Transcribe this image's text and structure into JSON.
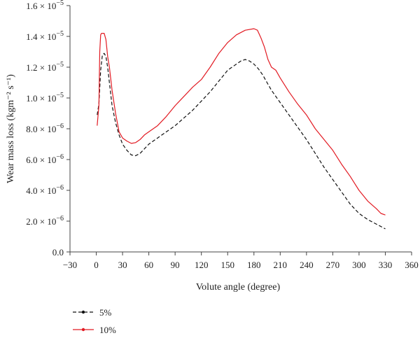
{
  "chart_data": {
    "type": "line",
    "title": "",
    "xlabel": "Volute angle (degree)",
    "ylabel": "Wear mass loss (kgm⁻² s⁻¹)",
    "xlim": [
      -30,
      360
    ],
    "ylim": [
      0,
      1.6e-05
    ],
    "grid": false,
    "legend_position": "bottom-left",
    "x_ticks": [
      -30,
      0,
      30,
      60,
      90,
      120,
      150,
      180,
      210,
      240,
      270,
      300,
      330,
      360
    ],
    "x_tick_labels": [
      "−30",
      "0",
      "30",
      "60",
      "90",
      "120",
      "150",
      "180",
      "210",
      "240",
      "270",
      "300",
      "330",
      "360"
    ],
    "y_ticks": [
      0,
      2e-06,
      4e-06,
      6e-06,
      8e-06,
      1e-05,
      1.2e-05,
      1.4e-05,
      1.6e-05
    ],
    "y_tick_labels": [
      {
        "mantissa": "0.0",
        "exp": ""
      },
      {
        "mantissa": "2.0",
        "exp": "−6"
      },
      {
        "mantissa": "4.0",
        "exp": "−6"
      },
      {
        "mantissa": "6.0",
        "exp": "−6"
      },
      {
        "mantissa": "8.0",
        "exp": "−6"
      },
      {
        "mantissa": "1.0",
        "exp": "−5"
      },
      {
        "mantissa": "1.2",
        "exp": "−5"
      },
      {
        "mantissa": "1.4",
        "exp": "−5"
      },
      {
        "mantissa": "1.6",
        "exp": "−5"
      }
    ],
    "tick_times_sign": "× 10",
    "series": [
      {
        "name": "5%",
        "color": "#111111",
        "dash": "dashed",
        "x": [
          1,
          3,
          5,
          7,
          9,
          11,
          13,
          15,
          18,
          22,
          26,
          30,
          35,
          40,
          45,
          50,
          55,
          60,
          70,
          80,
          90,
          100,
          110,
          120,
          130,
          140,
          150,
          160,
          165,
          170,
          175,
          180,
          185,
          190,
          195,
          200,
          210,
          220,
          230,
          240,
          250,
          260,
          270,
          280,
          290,
          300,
          310,
          320,
          330
        ],
        "y": [
          8.9e-06,
          9.6e-06,
          1.18e-05,
          1.28e-05,
          1.29e-05,
          1.27e-05,
          1.2e-05,
          1.1e-05,
          9.5e-06,
          8.4e-06,
          7.6e-06,
          7e-06,
          6.6e-06,
          6.3e-06,
          6.25e-06,
          6.4e-06,
          6.7e-06,
          7e-06,
          7.4e-06,
          7.8e-06,
          8.2e-06,
          8.7e-06,
          9.2e-06,
          9.8e-06,
          1.04e-05,
          1.11e-05,
          1.18e-05,
          1.22e-05,
          1.24e-05,
          1.25e-05,
          1.24e-05,
          1.22e-05,
          1.19e-05,
          1.15e-05,
          1.1e-05,
          1.05e-05,
          9.7e-06,
          8.9e-06,
          8.1e-06,
          7.3e-06,
          6.4e-06,
          5.5e-06,
          4.7e-06,
          3.9e-06,
          3.1e-06,
          2.5e-06,
          2.1e-06,
          1.8e-06,
          1.5e-06
        ]
      },
      {
        "name": "10%",
        "color": "#e21b23",
        "dash": "solid",
        "x": [
          1,
          3,
          4,
          5,
          6,
          7,
          9,
          11,
          13,
          15,
          18,
          22,
          26,
          30,
          35,
          40,
          45,
          50,
          55,
          60,
          70,
          80,
          90,
          100,
          110,
          120,
          130,
          140,
          150,
          160,
          170,
          180,
          184,
          188,
          192,
          196,
          200,
          205,
          210,
          220,
          230,
          240,
          250,
          260,
          270,
          280,
          290,
          300,
          310,
          320,
          325,
          330
        ],
        "y": [
          8.2e-06,
          9.5e-06,
          1.3e-05,
          1.41e-05,
          1.42e-05,
          1.42e-05,
          1.42e-05,
          1.38e-05,
          1.27e-05,
          1.2e-05,
          1.05e-05,
          9e-06,
          7.8e-06,
          7.4e-06,
          7.2e-06,
          7.05e-06,
          7.1e-06,
          7.3e-06,
          7.6e-06,
          7.8e-06,
          8.2e-06,
          8.8e-06,
          9.5e-06,
          1.01e-05,
          1.07e-05,
          1.12e-05,
          1.2e-05,
          1.29e-05,
          1.36e-05,
          1.41e-05,
          1.44e-05,
          1.45e-05,
          1.44e-05,
          1.39e-05,
          1.33e-05,
          1.25e-05,
          1.2e-05,
          1.18e-05,
          1.13e-05,
          1.04e-05,
          9.6e-06,
          8.9e-06,
          8e-06,
          7.3e-06,
          6.6e-06,
          5.7e-06,
          4.9e-06,
          4e-06,
          3.3e-06,
          2.8e-06,
          2.5e-06,
          2.4e-06
        ]
      }
    ]
  }
}
